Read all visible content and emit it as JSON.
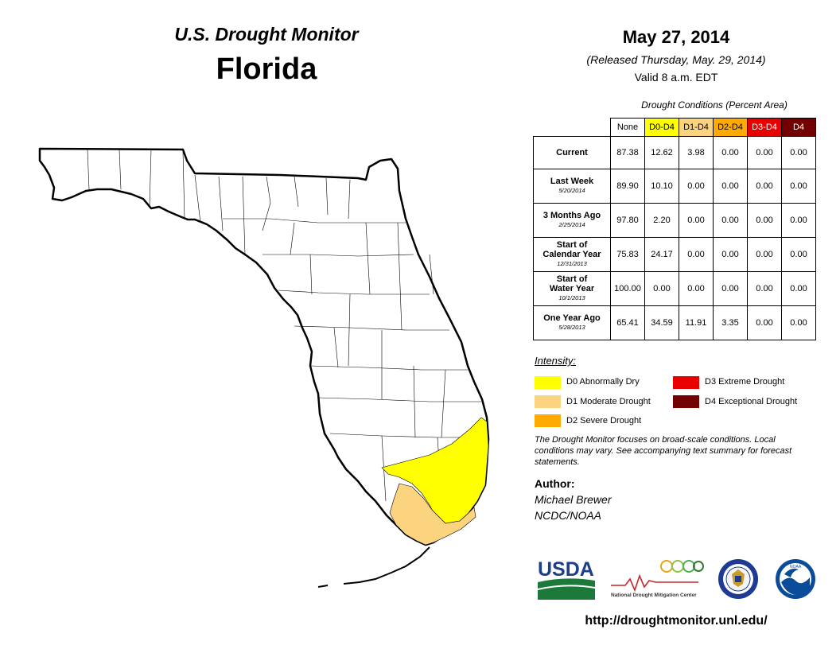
{
  "header": {
    "title_line1": "U.S. Drought Monitor",
    "title_line2": "Florida",
    "date": "May 27, 2014",
    "released": "(Released Thursday, May. 29, 2014)",
    "valid": "Valid 8 a.m. EDT"
  },
  "table": {
    "caption": "Drought Conditions (Percent Area)",
    "columns": [
      {
        "label": "None",
        "color": "#ffffff"
      },
      {
        "label": "D0-D4",
        "color": "#ffff00"
      },
      {
        "label": "D1-D4",
        "color": "#fcd37f"
      },
      {
        "label": "D2-D4",
        "color": "#ffaa00"
      },
      {
        "label": "D3-D4",
        "color": "#e60000"
      },
      {
        "label": "D4",
        "color": "#730000"
      }
    ],
    "rows": [
      {
        "label": "Current",
        "sublabel": "",
        "values": [
          "87.38",
          "12.62",
          "3.98",
          "0.00",
          "0.00",
          "0.00"
        ]
      },
      {
        "label": "Last Week",
        "sublabel": "5/20/2014",
        "values": [
          "89.90",
          "10.10",
          "0.00",
          "0.00",
          "0.00",
          "0.00"
        ]
      },
      {
        "label": "3 Months Ago",
        "sublabel": "2/25/2014",
        "values": [
          "97.80",
          "2.20",
          "0.00",
          "0.00",
          "0.00",
          "0.00"
        ]
      },
      {
        "label": "Start of\nCalendar Year",
        "sublabel": "12/31/2013",
        "values": [
          "75.83",
          "24.17",
          "0.00",
          "0.00",
          "0.00",
          "0.00"
        ]
      },
      {
        "label": "Start of\nWater Year",
        "sublabel": "10/1/2013",
        "values": [
          "100.00",
          "0.00",
          "0.00",
          "0.00",
          "0.00",
          "0.00"
        ]
      },
      {
        "label": "One Year Ago",
        "sublabel": "5/28/2013",
        "values": [
          "65.41",
          "34.59",
          "11.91",
          "3.35",
          "0.00",
          "0.00"
        ]
      }
    ]
  },
  "legend": {
    "title": "Intensity:",
    "items": [
      {
        "label": "D0 Abnormally Dry",
        "color": "#ffff00"
      },
      {
        "label": "D1 Moderate Drought",
        "color": "#fcd37f"
      },
      {
        "label": "D2 Severe Drought",
        "color": "#ffaa00"
      },
      {
        "label": "D3 Extreme Drought",
        "color": "#e60000"
      },
      {
        "label": "D4 Exceptional Drought",
        "color": "#730000"
      }
    ]
  },
  "disclaimer": "The Drought Monitor focuses on broad-scale conditions. Local conditions may vary. See accompanying text summary for forecast statements.",
  "author": {
    "label": "Author:",
    "name": "Michael Brewer",
    "org": "NCDC/NOAA"
  },
  "logos": {
    "usda": "USDA",
    "ndmc": "National Drought Mitigation Center",
    "noaa": "NOAA"
  },
  "url": "http://droughtmonitor.unl.edu/"
}
